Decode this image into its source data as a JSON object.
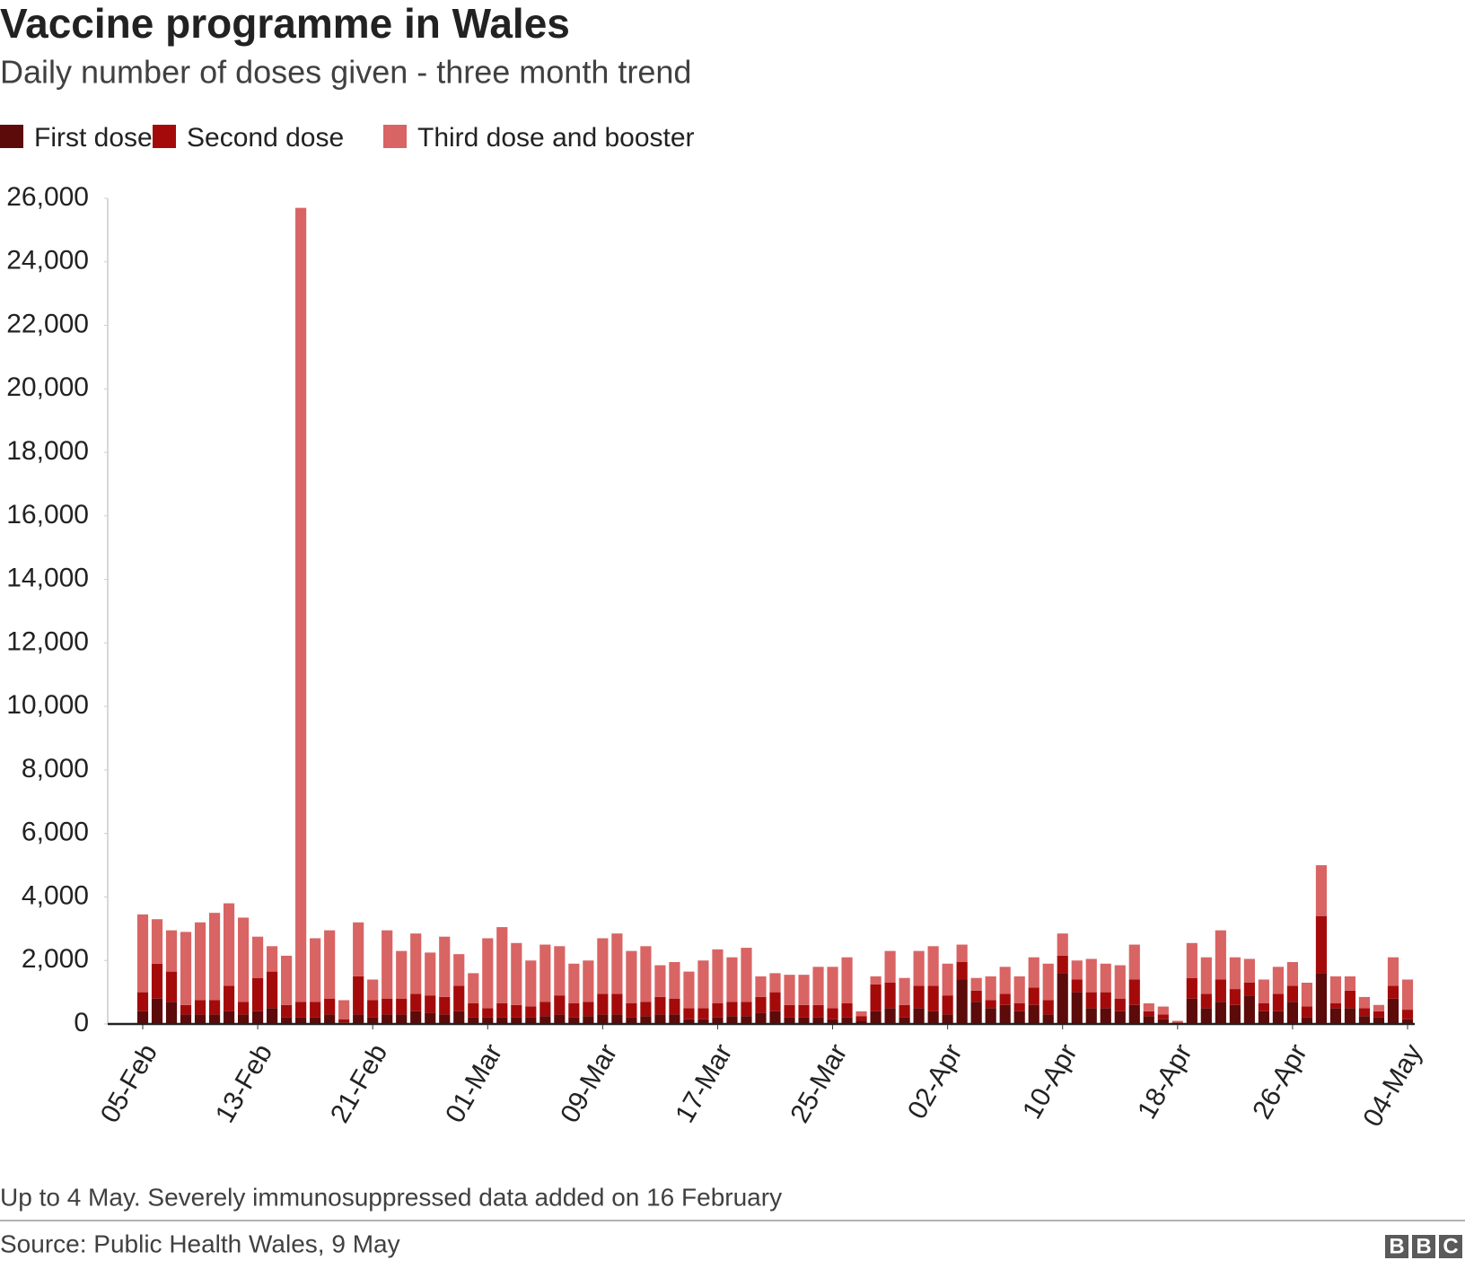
{
  "chart_data": {
    "type": "stacked_bar",
    "title": "Vaccine programme in Wales",
    "subtitle": "Daily number of doses given - three month trend",
    "note": "Up to 4 May. Severely immunosuppressed data added on 16 February",
    "source": "Source: Public Health Wales, 9 May",
    "logo": [
      "B",
      "B",
      "C"
    ],
    "categories": [
      "05-Feb",
      null,
      null,
      null,
      null,
      null,
      null,
      null,
      "13-Feb",
      null,
      null,
      null,
      null,
      null,
      null,
      null,
      "21-Feb",
      null,
      null,
      null,
      null,
      null,
      null,
      null,
      "01-Mar",
      null,
      null,
      null,
      null,
      null,
      null,
      null,
      "09-Mar",
      null,
      null,
      null,
      null,
      null,
      null,
      null,
      "17-Mar",
      null,
      null,
      null,
      null,
      null,
      null,
      null,
      "25-Mar",
      null,
      null,
      null,
      null,
      null,
      null,
      null,
      "02-Apr",
      null,
      null,
      null,
      null,
      null,
      null,
      null,
      "10-Apr",
      null,
      null,
      null,
      null,
      null,
      null,
      null,
      "18-Apr",
      null,
      null,
      null,
      null,
      null,
      null,
      null,
      "26-Apr",
      null,
      null,
      null,
      null,
      null,
      null,
      null,
      "04-May"
    ],
    "series": [
      {
        "name": "First dose",
        "color": "#5c0a0a",
        "values": [
          400,
          800,
          700,
          300,
          300,
          300,
          400,
          300,
          400,
          500,
          200,
          200,
          200,
          300,
          50,
          300,
          200,
          300,
          300,
          400,
          350,
          300,
          400,
          200,
          200,
          200,
          200,
          200,
          250,
          300,
          200,
          250,
          300,
          300,
          200,
          250,
          300,
          300,
          150,
          150,
          200,
          250,
          250,
          350,
          400,
          200,
          200,
          200,
          150,
          200,
          100,
          400,
          500,
          200,
          500,
          400,
          300,
          1400,
          700,
          500,
          600,
          400,
          600,
          300,
          1600,
          1000,
          500,
          500,
          400,
          600,
          250,
          150,
          20,
          800,
          500,
          700,
          600,
          900,
          400,
          400,
          700,
          200,
          1600,
          500,
          500,
          250,
          200,
          800,
          150
        ]
      },
      {
        "name": "Second dose",
        "color": "#a50a0a",
        "values": [
          600,
          1100,
          950,
          300,
          450,
          450,
          800,
          400,
          1050,
          1150,
          400,
          500,
          500,
          500,
          100,
          1200,
          550,
          500,
          500,
          550,
          550,
          550,
          800,
          450,
          300,
          450,
          400,
          350,
          450,
          600,
          450,
          450,
          650,
          650,
          450,
          450,
          550,
          500,
          350,
          350,
          450,
          450,
          450,
          500,
          600,
          400,
          400,
          400,
          350,
          450,
          150,
          850,
          800,
          400,
          700,
          800,
          600,
          550,
          350,
          250,
          350,
          250,
          550,
          450,
          550,
          400,
          500,
          500,
          400,
          800,
          150,
          150,
          30,
          650,
          450,
          700,
          500,
          400,
          250,
          550,
          500,
          350,
          1800,
          150,
          550,
          250,
          200,
          400,
          300
        ]
      },
      {
        "name": "Third dose and booster",
        "color": "#d96464",
        "values": [
          2450,
          1400,
          1300,
          2300,
          2450,
          2750,
          2600,
          2650,
          1300,
          800,
          1550,
          25000,
          2000,
          2150,
          600,
          1700,
          650,
          2150,
          1500,
          1900,
          1350,
          1900,
          1000,
          950,
          2200,
          2400,
          1950,
          1450,
          1800,
          1550,
          1250,
          1300,
          1750,
          1900,
          1650,
          1750,
          1000,
          1150,
          1150,
          1500,
          1700,
          1400,
          1700,
          650,
          600,
          950,
          950,
          1200,
          1300,
          1450,
          150,
          250,
          1000,
          850,
          1100,
          1250,
          1000,
          550,
          400,
          750,
          850,
          850,
          950,
          1150,
          700,
          600,
          1050,
          900,
          1050,
          1100,
          250,
          250,
          50,
          1100,
          1150,
          1550,
          1000,
          750,
          750,
          850,
          750,
          750,
          1600,
          850,
          450,
          350,
          200,
          900,
          950
        ]
      }
    ],
    "ylim": [
      0,
      26000
    ],
    "yticks": [
      0,
      {
        "value": 2000,
        "label": "2,000"
      },
      {
        "value": 4000,
        "label": "4,000"
      },
      {
        "value": 6000,
        "label": "6,000"
      },
      {
        "value": 8000,
        "label": "8,000"
      },
      {
        "value": 10000,
        "label": "10,000"
      },
      {
        "value": 12000,
        "label": "12,000"
      },
      {
        "value": 14000,
        "label": "14,000"
      },
      {
        "value": 16000,
        "label": "16,000"
      },
      {
        "value": 18000,
        "label": "18,000"
      },
      {
        "value": 20000,
        "label": "20,000"
      },
      {
        "value": 22000,
        "label": "22,000"
      },
      {
        "value": 24000,
        "label": "24,000"
      },
      {
        "value": 26000,
        "label": "26,000"
      }
    ],
    "grid": false
  }
}
